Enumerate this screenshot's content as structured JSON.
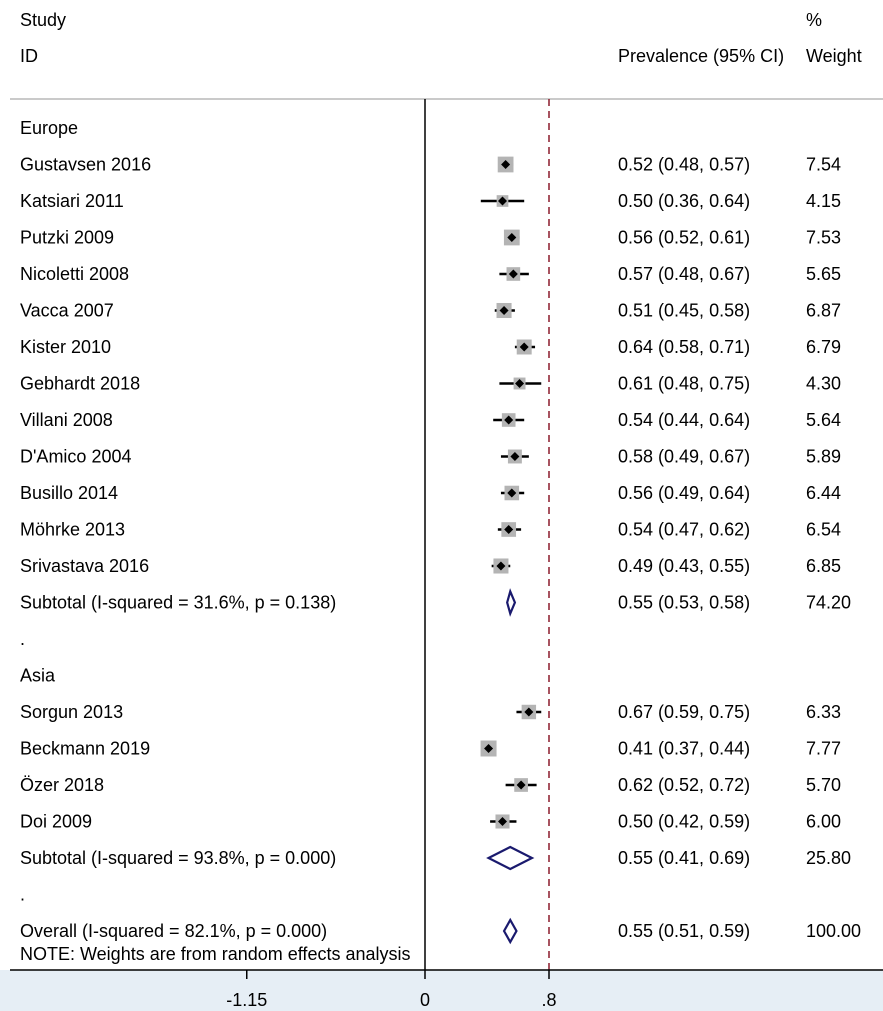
{
  "chart_data": {
    "type": "forest",
    "header": {
      "study_line1": "Study",
      "study_line2": "ID",
      "effect": "Prevalence (95% CI)",
      "weight_line1": "%",
      "weight_line2": "Weight"
    },
    "x_axis": {
      "ticks": [
        {
          "value": -1.15,
          "label": "-1.15"
        },
        {
          "value": 0,
          "label": "0"
        },
        {
          "value": 0.8,
          "label": ".8"
        }
      ],
      "range": [
        -1.15,
        1.15
      ]
    },
    "reference_line": 0.55,
    "rows": [
      {
        "kind": "group",
        "label": "Europe"
      },
      {
        "kind": "study",
        "label": "Gustavsen  2016",
        "est": 0.52,
        "lo": 0.48,
        "hi": 0.57,
        "ci": "0.52 (0.48, 0.57)",
        "weight": "7.54"
      },
      {
        "kind": "study",
        "label": "Katsiari 2011",
        "est": 0.5,
        "lo": 0.36,
        "hi": 0.64,
        "ci": "0.50 (0.36, 0.64)",
        "weight": "4.15"
      },
      {
        "kind": "study",
        "label": "Putzki 2009",
        "est": 0.56,
        "lo": 0.52,
        "hi": 0.61,
        "ci": "0.56 (0.52, 0.61)",
        "weight": "7.53"
      },
      {
        "kind": "study",
        "label": "Nicoletti 2008",
        "est": 0.57,
        "lo": 0.48,
        "hi": 0.67,
        "ci": "0.57 (0.48, 0.67)",
        "weight": "5.65"
      },
      {
        "kind": "study",
        "label": "Vacca  2007",
        "est": 0.51,
        "lo": 0.45,
        "hi": 0.58,
        "ci": "0.51 (0.45, 0.58)",
        "weight": "6.87"
      },
      {
        "kind": "study",
        "label": "Kister 2010",
        "est": 0.64,
        "lo": 0.58,
        "hi": 0.71,
        "ci": "0.64 (0.58, 0.71)",
        "weight": "6.79"
      },
      {
        "kind": "study",
        "label": "Gebhardt  2018",
        "est": 0.61,
        "lo": 0.48,
        "hi": 0.75,
        "ci": "0.61 (0.48, 0.75)",
        "weight": "4.30"
      },
      {
        "kind": "study",
        "label": "Villani  2008",
        "est": 0.54,
        "lo": 0.44,
        "hi": 0.64,
        "ci": "0.54 (0.44, 0.64)",
        "weight": "5.64"
      },
      {
        "kind": "study",
        "label": "D'Amico 2004",
        "est": 0.58,
        "lo": 0.49,
        "hi": 0.67,
        "ci": "0.58 (0.49, 0.67)",
        "weight": "5.89"
      },
      {
        "kind": "study",
        "label": "Busillo 2014",
        "est": 0.56,
        "lo": 0.49,
        "hi": 0.64,
        "ci": "0.56 (0.49, 0.64)",
        "weight": "6.44"
      },
      {
        "kind": "study",
        "label": "Möhrke  2013",
        "est": 0.54,
        "lo": 0.47,
        "hi": 0.62,
        "ci": "0.54 (0.47, 0.62)",
        "weight": "6.54"
      },
      {
        "kind": "study",
        "label": "Srivastava 2016",
        "est": 0.49,
        "lo": 0.43,
        "hi": 0.55,
        "ci": "0.49 (0.43, 0.55)",
        "weight": "6.85"
      },
      {
        "kind": "subtotal",
        "label": "Subtotal  (I-squared = 31.6%, p = 0.138)",
        "est": 0.55,
        "lo": 0.53,
        "hi": 0.58,
        "ci": "0.55 (0.53, 0.58)",
        "weight": "74.20"
      },
      {
        "kind": "spacer",
        "label": "."
      },
      {
        "kind": "group",
        "label": "Asia"
      },
      {
        "kind": "study",
        "label": "Sorgun 2013",
        "est": 0.67,
        "lo": 0.59,
        "hi": 0.75,
        "ci": "0.67 (0.59, 0.75)",
        "weight": "6.33"
      },
      {
        "kind": "study",
        "label": "Beckmann  2019",
        "est": 0.41,
        "lo": 0.37,
        "hi": 0.44,
        "ci": "0.41 (0.37, 0.44)",
        "weight": "7.77"
      },
      {
        "kind": "study",
        "label": "Özer  2018",
        "est": 0.62,
        "lo": 0.52,
        "hi": 0.72,
        "ci": "0.62 (0.52, 0.72)",
        "weight": "5.70"
      },
      {
        "kind": "study",
        "label": "Doi  2009",
        "est": 0.5,
        "lo": 0.42,
        "hi": 0.59,
        "ci": "0.50 (0.42, 0.59)",
        "weight": "6.00"
      },
      {
        "kind": "subtotal",
        "label": "Subtotal  (I-squared = 93.8%, p = 0.000)",
        "est": 0.55,
        "lo": 0.41,
        "hi": 0.69,
        "ci": "0.55 (0.41, 0.69)",
        "weight": "25.80"
      },
      {
        "kind": "spacer",
        "label": "."
      },
      {
        "kind": "overall",
        "label": "Overall  (I-squared = 82.1%, p = 0.000)",
        "est": 0.55,
        "lo": 0.51,
        "hi": 0.59,
        "ci": "0.55 (0.51, 0.59)",
        "weight": "100.00"
      }
    ],
    "note": "NOTE: Weights are from random effects analysis",
    "colors": {
      "reference_line": "#8b1a2b",
      "diamond": "#1a1a6e",
      "box": "#b4b4b4",
      "axis_band": "#e6eef5"
    }
  }
}
